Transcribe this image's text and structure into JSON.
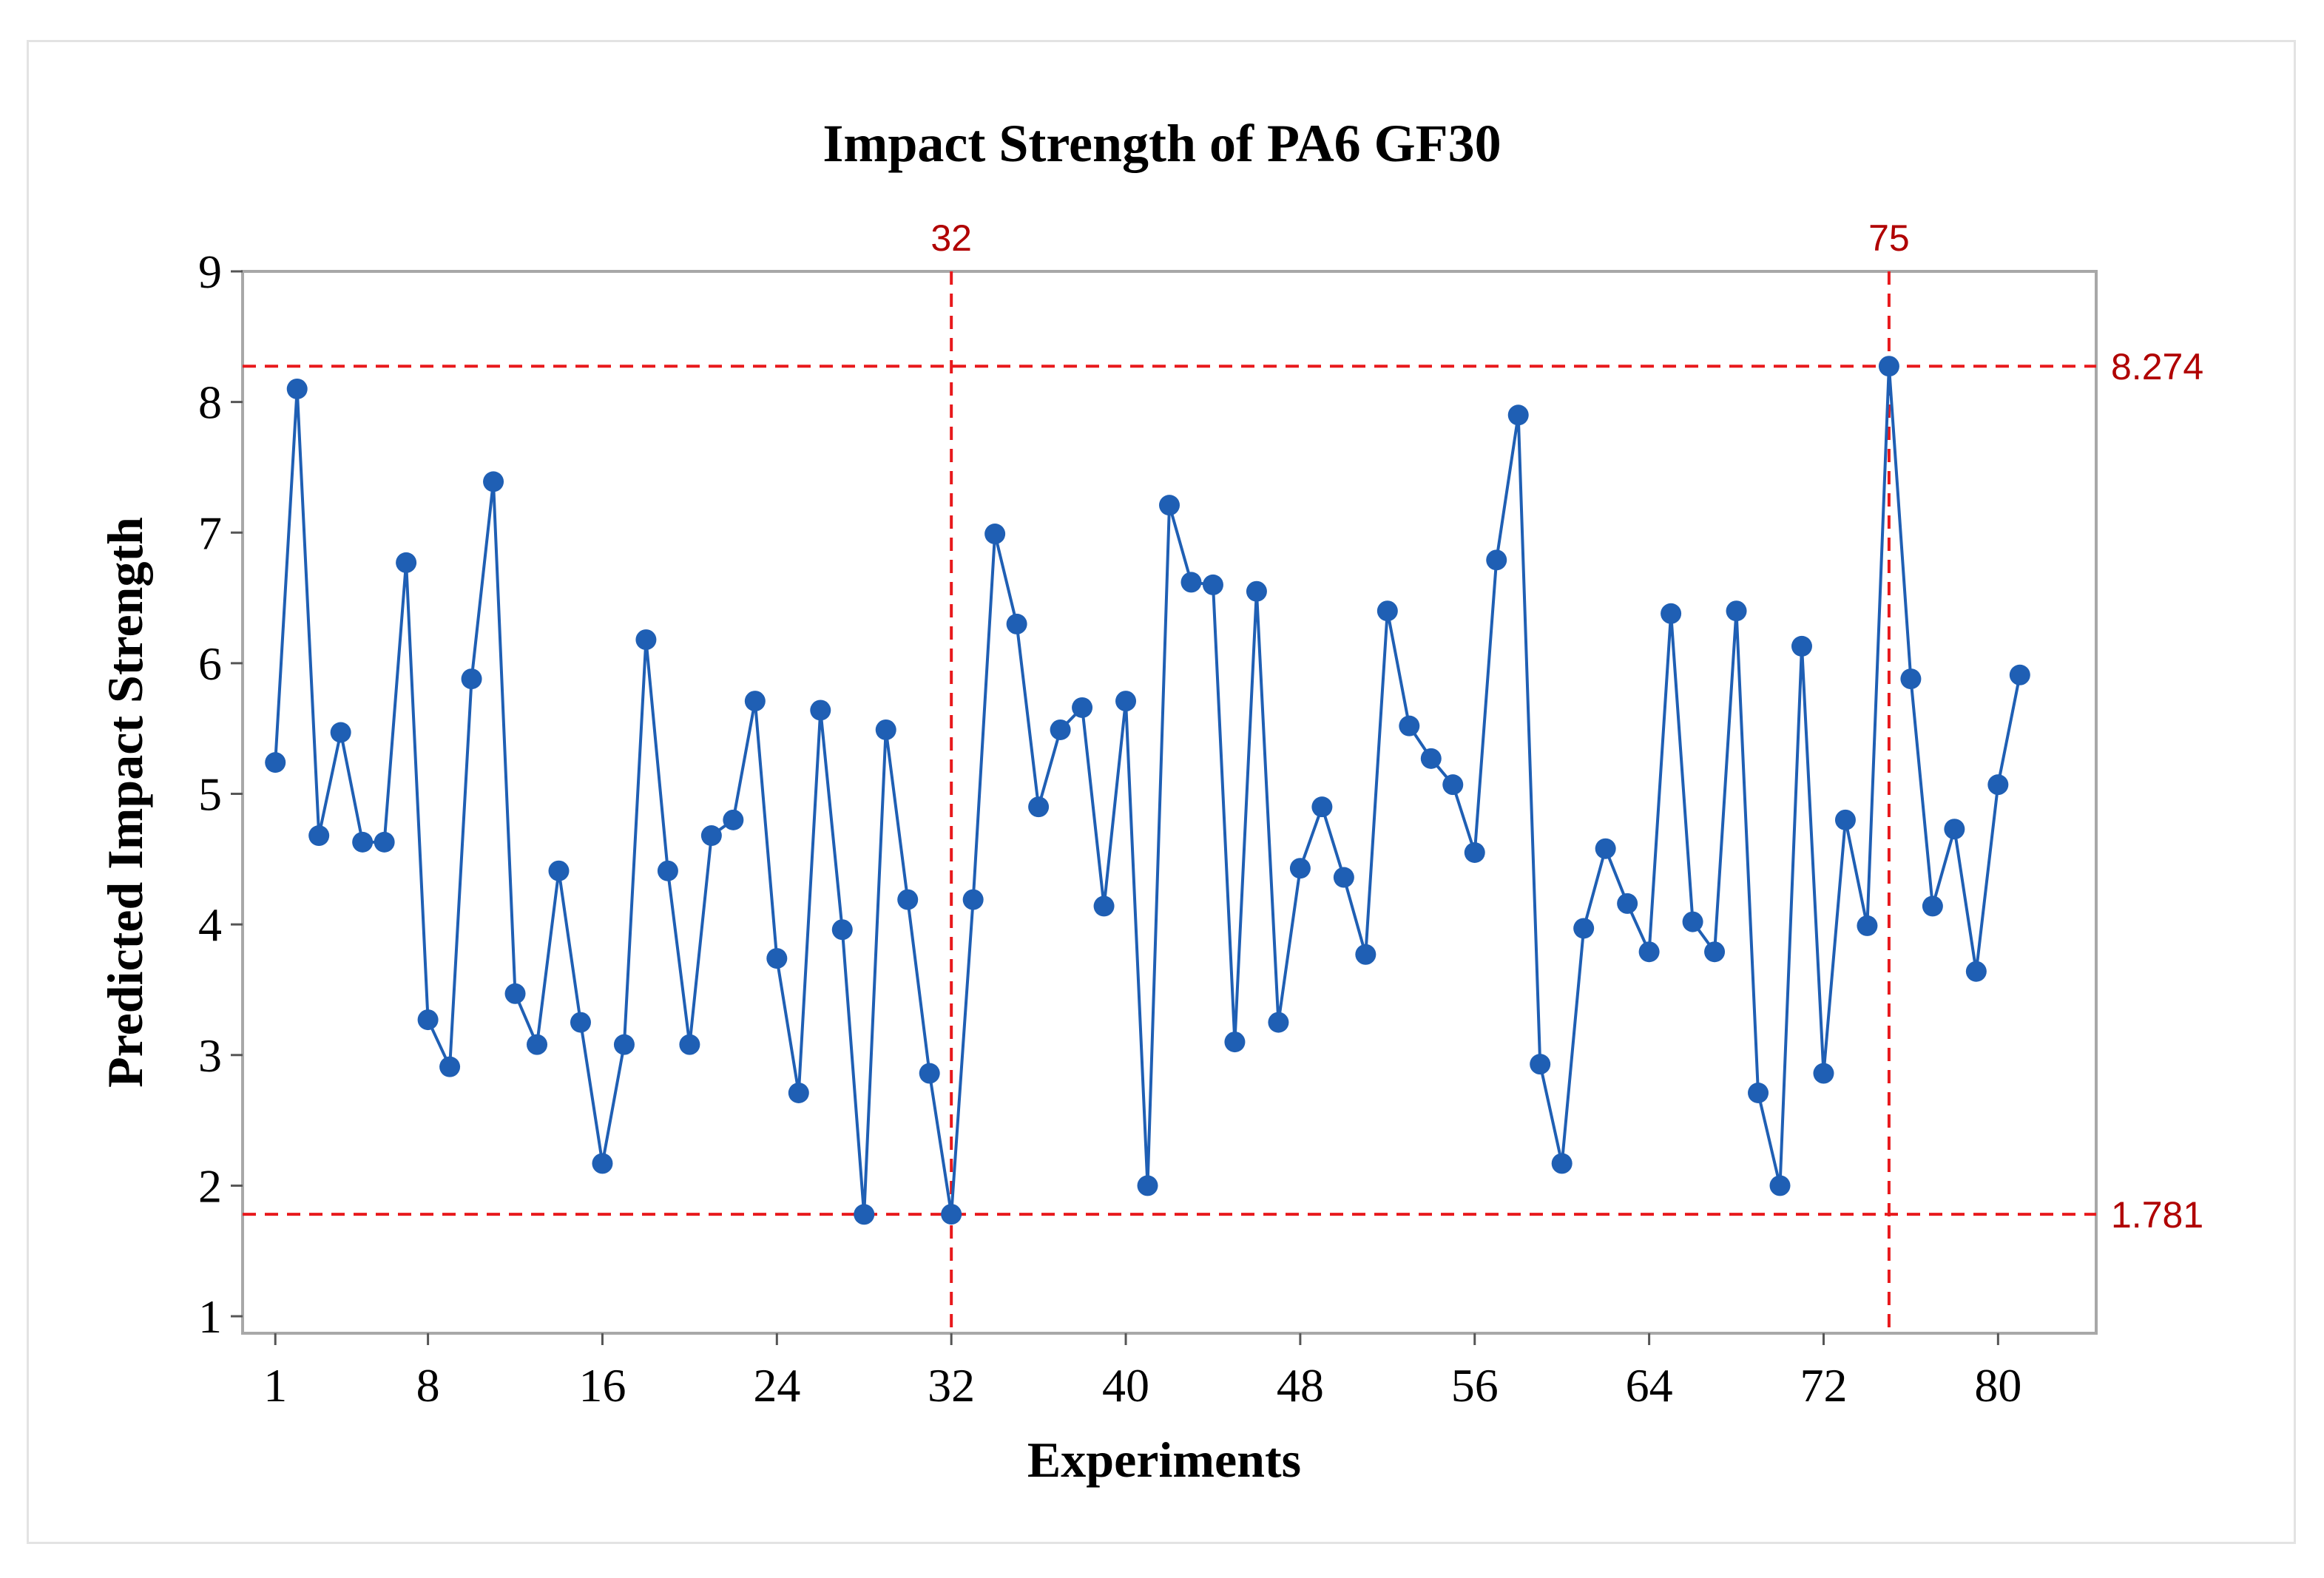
{
  "chart_data": {
    "type": "line",
    "title": "Impact Strength of PA6 GF30",
    "xlabel": "Experiments",
    "ylabel": "Predicted Impact Strength",
    "xlim": [
      -0.5,
      84.5
    ],
    "ylim": [
      0.87,
      9.0
    ],
    "xticks": [
      1,
      8,
      16,
      24,
      32,
      40,
      48,
      56,
      64,
      72,
      80
    ],
    "xtick_labels": [
      "1",
      "8",
      "16",
      "24",
      "32",
      "40",
      "48",
      "56",
      "64",
      "72",
      "80"
    ],
    "yticks": [
      1,
      2,
      3,
      4,
      5,
      6,
      7,
      8,
      9
    ],
    "ytick_labels": [
      "1",
      "2",
      "3",
      "4",
      "5",
      "6",
      "7",
      "8",
      "9"
    ],
    "series": [
      {
        "name": "Predicted Impact Strength",
        "color": "#1f5fb4",
        "x": [
          1,
          2,
          3,
          4,
          5,
          6,
          7,
          8,
          9,
          10,
          11,
          12,
          13,
          14,
          15,
          16,
          17,
          18,
          19,
          20,
          21,
          22,
          23,
          24,
          25,
          26,
          27,
          28,
          29,
          30,
          31,
          32,
          33,
          34,
          35,
          36,
          37,
          38,
          39,
          40,
          41,
          42,
          43,
          44,
          45,
          46,
          47,
          48,
          49,
          50,
          51,
          52,
          53,
          54,
          55,
          56,
          57,
          58,
          59,
          60,
          61,
          62,
          63,
          64,
          65,
          66,
          67,
          68,
          69,
          70,
          71,
          72,
          73,
          74,
          75,
          76,
          77,
          78,
          79,
          80,
          81
        ],
        "values": [
          5.24,
          8.1,
          4.68,
          5.47,
          4.63,
          4.63,
          6.77,
          3.27,
          2.91,
          5.88,
          7.39,
          3.47,
          3.08,
          4.41,
          3.25,
          2.17,
          3.08,
          6.18,
          4.41,
          3.08,
          4.68,
          4.8,
          5.71,
          3.74,
          2.71,
          5.64,
          3.96,
          1.78,
          5.49,
          4.19,
          2.86,
          1.781,
          4.19,
          6.99,
          6.3,
          4.9,
          5.49,
          5.66,
          4.14,
          5.71,
          2.0,
          7.21,
          6.62,
          6.6,
          3.1,
          6.55,
          3.25,
          4.43,
          4.9,
          4.36,
          3.77,
          6.4,
          5.52,
          5.27,
          5.07,
          4.55,
          6.79,
          7.9,
          2.93,
          2.17,
          3.97,
          4.58,
          4.16,
          3.79,
          6.38,
          4.02,
          3.79,
          6.4,
          2.71,
          2.0,
          6.13,
          2.86,
          4.8,
          3.99,
          8.274,
          5.88,
          4.14,
          4.73,
          3.64,
          5.07,
          5.91
        ]
      }
    ],
    "reference_lines": {
      "color": "#e8191c",
      "label_color": "#b00000",
      "horizontal": [
        {
          "value": 8.274,
          "label": "8.274"
        },
        {
          "value": 1.781,
          "label": "1.781"
        }
      ],
      "vertical": [
        {
          "value": 32,
          "label": "32"
        },
        {
          "value": 75,
          "label": "75"
        }
      ]
    }
  }
}
